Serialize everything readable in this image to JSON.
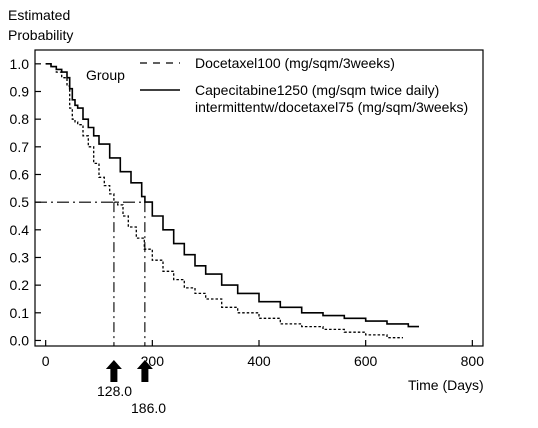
{
  "chart_data": {
    "type": "line",
    "ylabel_line1": "Estimated",
    "ylabel_line2": "Probability",
    "xlabel": "Time (Days)",
    "xlim": [
      -20,
      820
    ],
    "ylim": [
      -0.02,
      1.05
    ],
    "xticks": [
      0,
      200,
      400,
      600,
      800
    ],
    "yticks": [
      0.0,
      0.1,
      0.2,
      0.3,
      0.4,
      0.5,
      0.6,
      0.7,
      0.8,
      0.9,
      1.0
    ],
    "ytick_labels": [
      "0.0",
      "0.1",
      "0.2",
      "0.3",
      "0.4",
      "0.5",
      "0.6",
      "0.7",
      "0.8",
      "0.9",
      "1.0"
    ],
    "grid": false,
    "legend": {
      "title": "Group",
      "entries": [
        {
          "label_lines": [
            "Docetaxel100 (mg/sqm/3weeks)"
          ],
          "style": "dashed"
        },
        {
          "label_lines": [
            "Capecitabine1250 (mg/sqm twice daily)",
            "intermittentw/docetaxel75 (mg/sqm/3weeks)"
          ],
          "style": "solid"
        }
      ]
    },
    "series": [
      {
        "style": "dashed",
        "x": [
          0,
          10,
          20,
          30,
          40,
          45,
          50,
          55,
          60,
          70,
          80,
          90,
          100,
          110,
          120,
          128,
          135,
          145,
          155,
          170,
          185,
          200,
          220,
          240,
          260,
          280,
          300,
          330,
          360,
          400,
          440,
          480,
          520,
          560,
          600,
          640,
          670
        ],
        "y": [
          1.0,
          0.99,
          0.97,
          0.95,
          0.92,
          0.84,
          0.8,
          0.79,
          0.78,
          0.74,
          0.7,
          0.64,
          0.59,
          0.56,
          0.53,
          0.5,
          0.49,
          0.45,
          0.41,
          0.37,
          0.33,
          0.29,
          0.25,
          0.22,
          0.19,
          0.17,
          0.15,
          0.12,
          0.1,
          0.08,
          0.06,
          0.05,
          0.04,
          0.03,
          0.02,
          0.01,
          0.01
        ]
      },
      {
        "style": "solid",
        "x": [
          0,
          10,
          20,
          30,
          40,
          45,
          50,
          55,
          60,
          70,
          80,
          90,
          100,
          120,
          140,
          160,
          180,
          186,
          200,
          220,
          240,
          260,
          280,
          300,
          330,
          360,
          400,
          440,
          480,
          520,
          560,
          600,
          640,
          680,
          700
        ],
        "y": [
          1.0,
          0.99,
          0.98,
          0.97,
          0.95,
          0.91,
          0.87,
          0.85,
          0.84,
          0.8,
          0.77,
          0.74,
          0.71,
          0.66,
          0.61,
          0.57,
          0.52,
          0.5,
          0.45,
          0.4,
          0.35,
          0.31,
          0.27,
          0.24,
          0.2,
          0.17,
          0.14,
          0.12,
          0.1,
          0.09,
          0.08,
          0.07,
          0.06,
          0.05,
          0.05
        ]
      }
    ],
    "reference": {
      "y": 0.5,
      "medians": [
        128,
        186
      ],
      "style": "dash-dot"
    },
    "annotations": [
      "128.0",
      "186.0"
    ]
  }
}
